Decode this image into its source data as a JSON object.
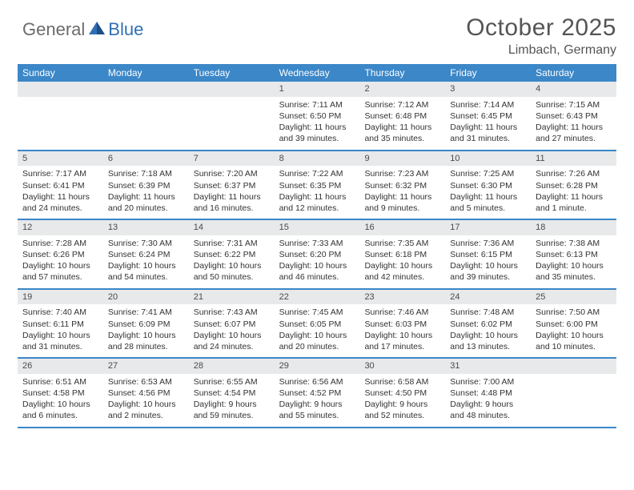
{
  "logo": {
    "general": "General",
    "blue": "Blue"
  },
  "header": {
    "month_year": "October 2025",
    "location": "Limbach, Germany"
  },
  "day_names": [
    "Sunday",
    "Monday",
    "Tuesday",
    "Wednesday",
    "Thursday",
    "Friday",
    "Saturday"
  ],
  "colors": {
    "header_bar": "#3b87c8",
    "daynum_bg": "#e8e9ea",
    "rule": "#3b87c8",
    "text": "#333333",
    "logo_gray": "#6b6b6b",
    "logo_blue": "#2f6fb4"
  },
  "weeks": [
    [
      null,
      null,
      null,
      {
        "n": "1",
        "sunrise": "Sunrise: 7:11 AM",
        "sunset": "Sunset: 6:50 PM",
        "day1": "Daylight: 11 hours",
        "day2": "and 39 minutes."
      },
      {
        "n": "2",
        "sunrise": "Sunrise: 7:12 AM",
        "sunset": "Sunset: 6:48 PM",
        "day1": "Daylight: 11 hours",
        "day2": "and 35 minutes."
      },
      {
        "n": "3",
        "sunrise": "Sunrise: 7:14 AM",
        "sunset": "Sunset: 6:45 PM",
        "day1": "Daylight: 11 hours",
        "day2": "and 31 minutes."
      },
      {
        "n": "4",
        "sunrise": "Sunrise: 7:15 AM",
        "sunset": "Sunset: 6:43 PM",
        "day1": "Daylight: 11 hours",
        "day2": "and 27 minutes."
      }
    ],
    [
      {
        "n": "5",
        "sunrise": "Sunrise: 7:17 AM",
        "sunset": "Sunset: 6:41 PM",
        "day1": "Daylight: 11 hours",
        "day2": "and 24 minutes."
      },
      {
        "n": "6",
        "sunrise": "Sunrise: 7:18 AM",
        "sunset": "Sunset: 6:39 PM",
        "day1": "Daylight: 11 hours",
        "day2": "and 20 minutes."
      },
      {
        "n": "7",
        "sunrise": "Sunrise: 7:20 AM",
        "sunset": "Sunset: 6:37 PM",
        "day1": "Daylight: 11 hours",
        "day2": "and 16 minutes."
      },
      {
        "n": "8",
        "sunrise": "Sunrise: 7:22 AM",
        "sunset": "Sunset: 6:35 PM",
        "day1": "Daylight: 11 hours",
        "day2": "and 12 minutes."
      },
      {
        "n": "9",
        "sunrise": "Sunrise: 7:23 AM",
        "sunset": "Sunset: 6:32 PM",
        "day1": "Daylight: 11 hours",
        "day2": "and 9 minutes."
      },
      {
        "n": "10",
        "sunrise": "Sunrise: 7:25 AM",
        "sunset": "Sunset: 6:30 PM",
        "day1": "Daylight: 11 hours",
        "day2": "and 5 minutes."
      },
      {
        "n": "11",
        "sunrise": "Sunrise: 7:26 AM",
        "sunset": "Sunset: 6:28 PM",
        "day1": "Daylight: 11 hours",
        "day2": "and 1 minute."
      }
    ],
    [
      {
        "n": "12",
        "sunrise": "Sunrise: 7:28 AM",
        "sunset": "Sunset: 6:26 PM",
        "day1": "Daylight: 10 hours",
        "day2": "and 57 minutes."
      },
      {
        "n": "13",
        "sunrise": "Sunrise: 7:30 AM",
        "sunset": "Sunset: 6:24 PM",
        "day1": "Daylight: 10 hours",
        "day2": "and 54 minutes."
      },
      {
        "n": "14",
        "sunrise": "Sunrise: 7:31 AM",
        "sunset": "Sunset: 6:22 PM",
        "day1": "Daylight: 10 hours",
        "day2": "and 50 minutes."
      },
      {
        "n": "15",
        "sunrise": "Sunrise: 7:33 AM",
        "sunset": "Sunset: 6:20 PM",
        "day1": "Daylight: 10 hours",
        "day2": "and 46 minutes."
      },
      {
        "n": "16",
        "sunrise": "Sunrise: 7:35 AM",
        "sunset": "Sunset: 6:18 PM",
        "day1": "Daylight: 10 hours",
        "day2": "and 42 minutes."
      },
      {
        "n": "17",
        "sunrise": "Sunrise: 7:36 AM",
        "sunset": "Sunset: 6:15 PM",
        "day1": "Daylight: 10 hours",
        "day2": "and 39 minutes."
      },
      {
        "n": "18",
        "sunrise": "Sunrise: 7:38 AM",
        "sunset": "Sunset: 6:13 PM",
        "day1": "Daylight: 10 hours",
        "day2": "and 35 minutes."
      }
    ],
    [
      {
        "n": "19",
        "sunrise": "Sunrise: 7:40 AM",
        "sunset": "Sunset: 6:11 PM",
        "day1": "Daylight: 10 hours",
        "day2": "and 31 minutes."
      },
      {
        "n": "20",
        "sunrise": "Sunrise: 7:41 AM",
        "sunset": "Sunset: 6:09 PM",
        "day1": "Daylight: 10 hours",
        "day2": "and 28 minutes."
      },
      {
        "n": "21",
        "sunrise": "Sunrise: 7:43 AM",
        "sunset": "Sunset: 6:07 PM",
        "day1": "Daylight: 10 hours",
        "day2": "and 24 minutes."
      },
      {
        "n": "22",
        "sunrise": "Sunrise: 7:45 AM",
        "sunset": "Sunset: 6:05 PM",
        "day1": "Daylight: 10 hours",
        "day2": "and 20 minutes."
      },
      {
        "n": "23",
        "sunrise": "Sunrise: 7:46 AM",
        "sunset": "Sunset: 6:03 PM",
        "day1": "Daylight: 10 hours",
        "day2": "and 17 minutes."
      },
      {
        "n": "24",
        "sunrise": "Sunrise: 7:48 AM",
        "sunset": "Sunset: 6:02 PM",
        "day1": "Daylight: 10 hours",
        "day2": "and 13 minutes."
      },
      {
        "n": "25",
        "sunrise": "Sunrise: 7:50 AM",
        "sunset": "Sunset: 6:00 PM",
        "day1": "Daylight: 10 hours",
        "day2": "and 10 minutes."
      }
    ],
    [
      {
        "n": "26",
        "sunrise": "Sunrise: 6:51 AM",
        "sunset": "Sunset: 4:58 PM",
        "day1": "Daylight: 10 hours",
        "day2": "and 6 minutes."
      },
      {
        "n": "27",
        "sunrise": "Sunrise: 6:53 AM",
        "sunset": "Sunset: 4:56 PM",
        "day1": "Daylight: 10 hours",
        "day2": "and 2 minutes."
      },
      {
        "n": "28",
        "sunrise": "Sunrise: 6:55 AM",
        "sunset": "Sunset: 4:54 PM",
        "day1": "Daylight: 9 hours",
        "day2": "and 59 minutes."
      },
      {
        "n": "29",
        "sunrise": "Sunrise: 6:56 AM",
        "sunset": "Sunset: 4:52 PM",
        "day1": "Daylight: 9 hours",
        "day2": "and 55 minutes."
      },
      {
        "n": "30",
        "sunrise": "Sunrise: 6:58 AM",
        "sunset": "Sunset: 4:50 PM",
        "day1": "Daylight: 9 hours",
        "day2": "and 52 minutes."
      },
      {
        "n": "31",
        "sunrise": "Sunrise: 7:00 AM",
        "sunset": "Sunset: 4:48 PM",
        "day1": "Daylight: 9 hours",
        "day2": "and 48 minutes."
      },
      null
    ]
  ]
}
